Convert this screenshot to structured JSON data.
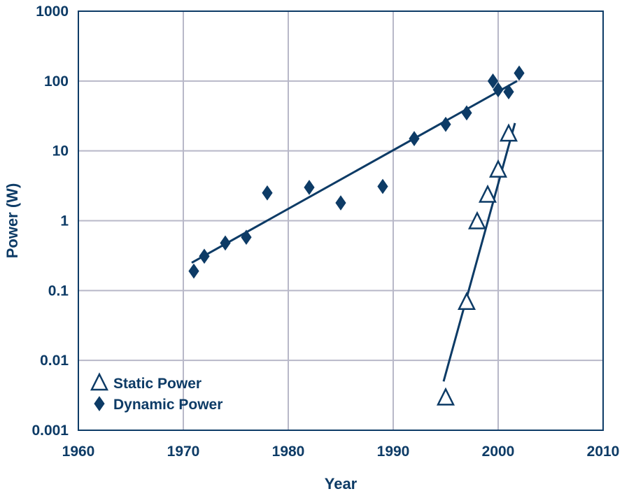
{
  "chart_data": {
    "type": "scatter",
    "title": "",
    "xlabel": "Year",
    "ylabel": "Power (W)",
    "xlim": [
      1960,
      2010
    ],
    "ylim": [
      0.001,
      1000
    ],
    "yscale": "log",
    "grid": true,
    "legend_position": "bottom-left",
    "x_ticks": [
      1960,
      1970,
      1980,
      1990,
      2000,
      2010
    ],
    "x_tick_labels": [
      "1960",
      "1970",
      "1980",
      "1990",
      "2000",
      "2010"
    ],
    "y_ticks": [
      0.001,
      0.01,
      0.1,
      1,
      10,
      100,
      1000
    ],
    "y_tick_labels": [
      "0.001",
      "0.01",
      "0.1",
      "1",
      "10",
      "100",
      "1000"
    ],
    "series": [
      {
        "name": "Static Power",
        "marker": "triangle-open",
        "color": "#0d3b66",
        "points": [
          [
            1995,
            0.003
          ],
          [
            1997,
            0.07
          ],
          [
            1998,
            1.0
          ],
          [
            1999,
            2.4
          ],
          [
            2000,
            5.5
          ],
          [
            2001,
            18
          ]
        ],
        "trendline": [
          [
            1994.8,
            0.005
          ],
          [
            2001.6,
            25
          ]
        ]
      },
      {
        "name": "Dynamic Power",
        "marker": "diamond-filled",
        "color": "#0d3b66",
        "points": [
          [
            1971,
            0.19
          ],
          [
            1972,
            0.31
          ],
          [
            1974,
            0.48
          ],
          [
            1976,
            0.58
          ],
          [
            1978,
            2.5
          ],
          [
            1982,
            3.0
          ],
          [
            1985,
            1.8
          ],
          [
            1989,
            3.1
          ],
          [
            1992,
            15
          ],
          [
            1995,
            24
          ],
          [
            1997,
            35
          ],
          [
            1999.5,
            100
          ],
          [
            2000,
            75
          ],
          [
            2001,
            70
          ],
          [
            2002,
            130
          ]
        ],
        "trendline": [
          [
            1970.8,
            0.25
          ],
          [
            2001.8,
            100
          ]
        ]
      }
    ],
    "colors": {
      "primary": "#0d3b66",
      "grid": "#b8b8c8"
    }
  }
}
